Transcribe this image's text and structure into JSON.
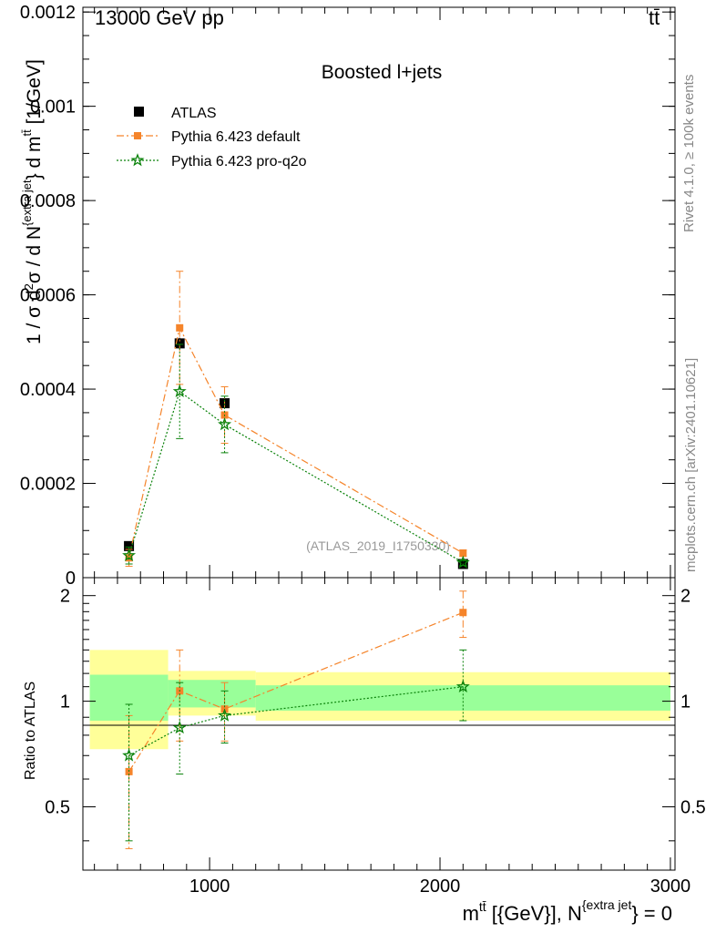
{
  "header": {
    "energy_label": "13000 GeV pp",
    "process_label": "tt̄",
    "rivet_label": "Rivet 4.1.0, ≥ 100k events",
    "mcplots_label": "mcplots.cern.ch [arXiv:2401.10621]"
  },
  "chart_data": {
    "type": "scatter",
    "title": "Boosted l+jets",
    "watermark": "(ATLAS_2019_I1750330)",
    "x_axis": {
      "label_main": "m",
      "label_sup": "tt̄",
      "label_mid": " [{GeV}], N",
      "label_sup2": "{extra jet",
      "label_end": "} = 0",
      "range": [
        450,
        3020
      ],
      "ticks": [
        1000,
        2000,
        3000
      ],
      "tick_labels": [
        "1000",
        "2000",
        "3000"
      ]
    },
    "main_panel": {
      "y_label_text": "1 / σ d²σ / d N{extra jet} d mtt̄ [1/GeV]",
      "y_range": [
        0,
        0.00121
      ],
      "y_ticks": [
        0,
        0.0002,
        0.0004,
        0.0006,
        0.0008,
        0.001,
        0.0012
      ],
      "y_tick_labels": [
        "0",
        "0.0002",
        "0.0004",
        "0.0006",
        "0.0008",
        "0.001",
        "0.0012"
      ],
      "series": [
        {
          "name": "ATLAS",
          "color": "#000000",
          "marker": "square",
          "line": "none",
          "x": [
            650,
            870,
            1065,
            2100
          ],
          "y": [
            6.7e-05,
            0.000497,
            0.00037,
            2.9e-05
          ],
          "err": [
            5e-06,
            1.2e-05,
            1e-05,
            3e-06
          ]
        },
        {
          "name": "Pythia 6.423 default",
          "color": "#f5842a",
          "marker": "square-small",
          "line": "dashdot",
          "x": [
            650,
            870,
            1065,
            2100
          ],
          "y": [
            4.2e-05,
            0.00053,
            0.000345,
            5.2e-05
          ],
          "err": [
            1.8e-05,
            0.00012,
            6e-05,
            7e-06
          ]
        },
        {
          "name": "Pythia 6.423 pro-q2o",
          "color": "#0a820a",
          "marker": "star",
          "line": "dotted",
          "x": [
            650,
            870,
            1065,
            2100
          ],
          "y": [
            4.7e-05,
            0.000395,
            0.000325,
            3.2e-05
          ],
          "err": [
            1.8e-05,
            0.0001,
            6e-05,
            6e-06
          ]
        }
      ]
    },
    "ratio_panel": {
      "y_label": "Ratio to ATLAS",
      "y_range": [
        0.33,
        2.25
      ],
      "y_ticks": [
        0.5,
        1,
        2
      ],
      "y_tick_labels": [
        "0.5",
        "1",
        "2"
      ],
      "bands": [
        {
          "x0": 480,
          "x1": 820,
          "y_lo": 0.73,
          "y_hi": 1.4,
          "inner_lo": 0.88,
          "inner_hi": 1.19
        },
        {
          "x0": 820,
          "x1": 1200,
          "y_lo": 0.91,
          "y_hi": 1.22,
          "inner_lo": 0.96,
          "inner_hi": 1.15
        },
        {
          "x0": 1200,
          "x1": 3000,
          "y_lo": 0.88,
          "y_hi": 1.21,
          "inner_lo": 0.94,
          "inner_hi": 1.11
        }
      ],
      "series": [
        {
          "name": "Pythia 6.423 default",
          "color": "#f5842a",
          "marker": "square-small",
          "line": "dashdot",
          "x": [
            650,
            870,
            1065,
            2100
          ],
          "y": [
            0.63,
            1.07,
            0.95,
            1.79
          ],
          "err_lo": [
            0.25,
            0.3,
            0.18,
            0.27
          ],
          "err_hi": [
            0.28,
            0.33,
            0.18,
            0.27
          ]
        },
        {
          "name": "Pythia 6.423 pro-q2o",
          "color": "#0a820a",
          "marker": "star",
          "line": "dotted",
          "x": [
            650,
            870,
            1065,
            2100
          ],
          "y": [
            0.7,
            0.84,
            0.91,
            1.1
          ],
          "err_lo": [
            0.3,
            0.22,
            0.15,
            0.22
          ],
          "err_hi": [
            0.28,
            0.29,
            0.16,
            0.3
          ]
        }
      ]
    }
  }
}
